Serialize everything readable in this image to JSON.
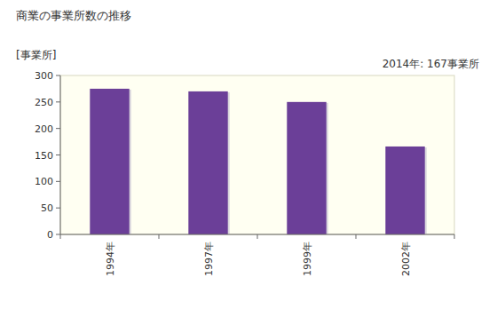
{
  "chart_data": {
    "type": "bar",
    "title": "商業の事業所数の推移",
    "y_label": "[事業所]",
    "annotation": "2014年: 167事業所",
    "categories": [
      "1994年",
      "1997年",
      "1999年",
      "2002年"
    ],
    "values": [
      275,
      270,
      250,
      166
    ],
    "color": "#6b3f98",
    "ylim": [
      0,
      300
    ],
    "yticks": [
      0,
      50,
      100,
      150,
      200,
      250,
      300
    ],
    "grid": false
  }
}
